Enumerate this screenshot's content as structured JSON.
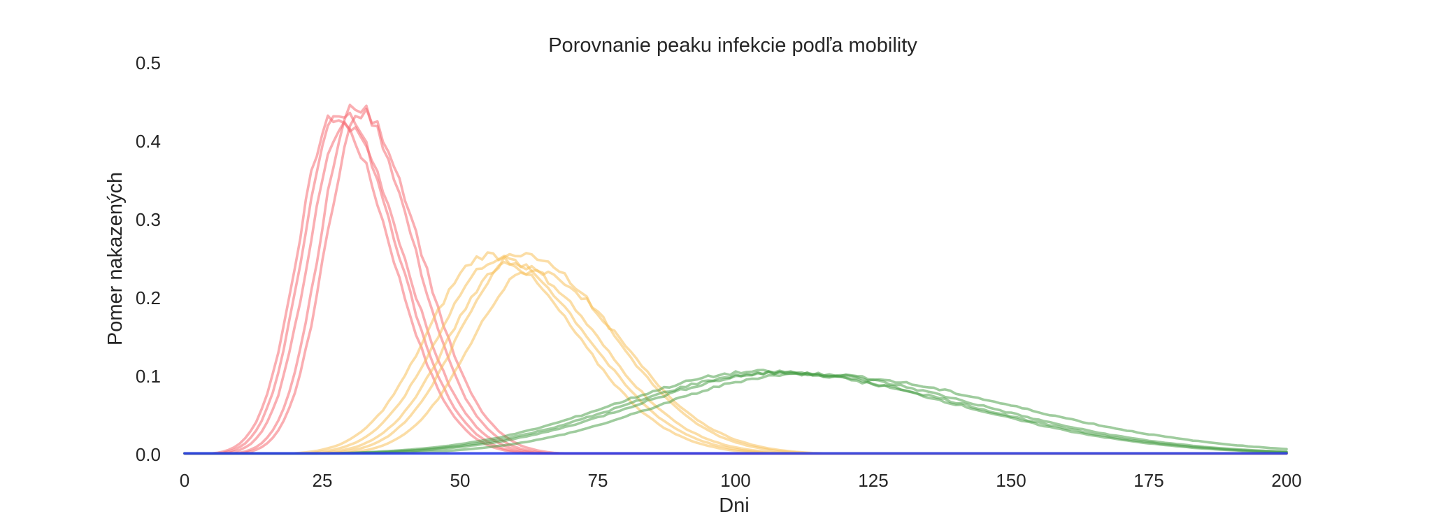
{
  "chart_data": {
    "type": "line",
    "title": "Porovnanie peaku infekcie podľa mobility",
    "xlabel": "Dni",
    "ylabel": "Pomer nakazených",
    "xlim": [
      0,
      200
    ],
    "ylim": [
      0,
      0.5
    ],
    "xticks": [
      "0",
      "25",
      "50",
      "75",
      "100",
      "125",
      "150",
      "175",
      "200"
    ],
    "yticks": [
      "0.0",
      "0.1",
      "0.2",
      "0.3",
      "0.4",
      "0.5"
    ],
    "grid": false,
    "legend": "none",
    "series_groups": [
      {
        "color": "#f56b72",
        "opacity": 0.55,
        "curves": [
          {
            "peak_x": 27,
            "peak_y": 0.43,
            "rise_width": 6.5,
            "fall_width": 10.5
          },
          {
            "peak_x": 28,
            "peak_y": 0.44,
            "rise_width": 6.5,
            "fall_width": 10.5
          },
          {
            "peak_x": 29,
            "peak_y": 0.42,
            "rise_width": 6.5,
            "fall_width": 10.8
          },
          {
            "peak_x": 31,
            "peak_y": 0.445,
            "rise_width": 6.5,
            "fall_width": 10.5
          },
          {
            "peak_x": 32,
            "peak_y": 0.435,
            "rise_width": 6.5,
            "fall_width": 10.8
          }
        ]
      },
      {
        "color": "#f8c15c",
        "opacity": 0.55,
        "curves": [
          {
            "peak_x": 55,
            "peak_y": 0.255,
            "rise_width": 11,
            "fall_width": 16
          },
          {
            "peak_x": 57,
            "peak_y": 0.25,
            "rise_width": 11,
            "fall_width": 16
          },
          {
            "peak_x": 59,
            "peak_y": 0.245,
            "rise_width": 11,
            "fall_width": 16
          },
          {
            "peak_x": 61,
            "peak_y": 0.258,
            "rise_width": 11,
            "fall_width": 16.5
          },
          {
            "peak_x": 63,
            "peak_y": 0.235,
            "rise_width": 11,
            "fall_width": 16.5
          }
        ]
      },
      {
        "color": "#3f9a3d",
        "opacity": 0.5,
        "curves": [
          {
            "peak_x": 105,
            "peak_y": 0.106,
            "rise_width": 27,
            "fall_width": 35
          },
          {
            "peak_x": 107,
            "peak_y": 0.104,
            "rise_width": 27,
            "fall_width": 35
          },
          {
            "peak_x": 109,
            "peak_y": 0.105,
            "rise_width": 27,
            "fall_width": 35
          },
          {
            "peak_x": 112,
            "peak_y": 0.103,
            "rise_width": 26,
            "fall_width": 38
          }
        ]
      },
      {
        "color": "#2a3ce8",
        "opacity": 0.9,
        "curves": [
          {
            "peak_x": 100,
            "peak_y": 0.0,
            "rise_width": 10,
            "fall_width": 10
          }
        ]
      }
    ]
  }
}
